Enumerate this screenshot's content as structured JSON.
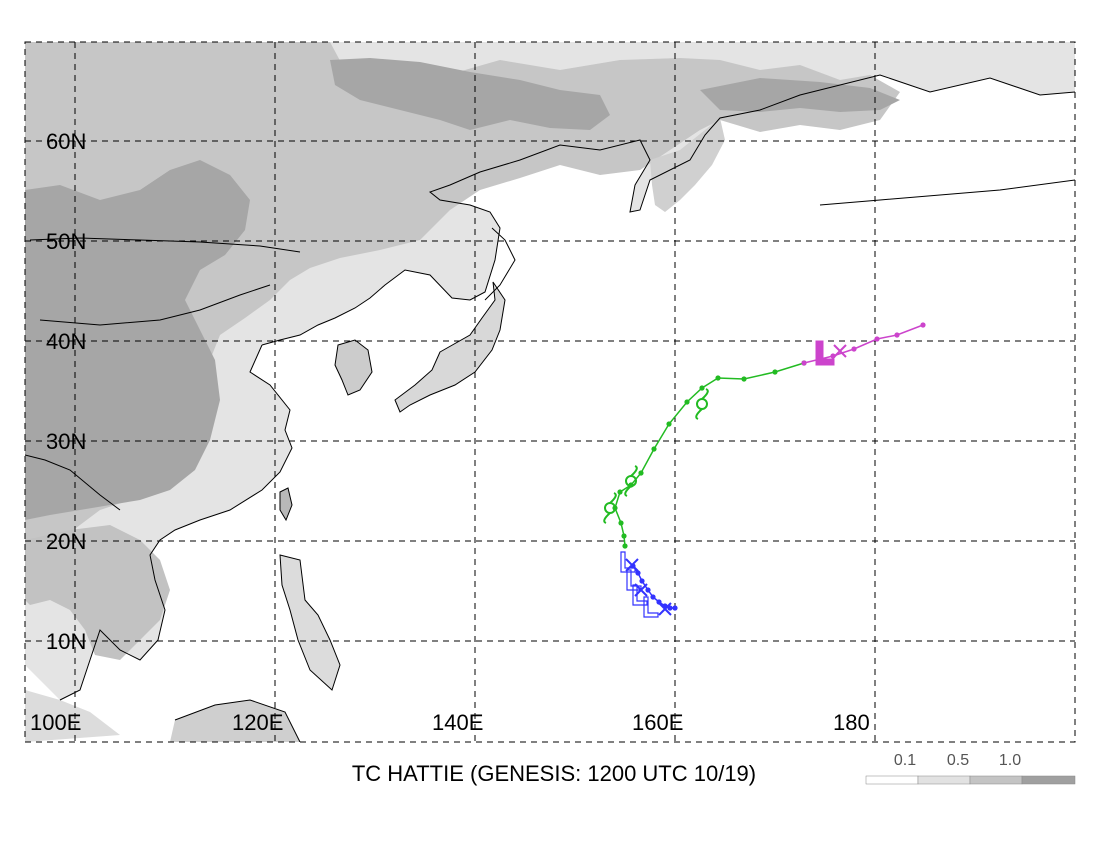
{
  "title": "TC HATTIE (GENESIS: 1200 UTC 10/19)",
  "latitude_labels": [
    "60N",
    "50N",
    "40N",
    "30N",
    "20N",
    "10N"
  ],
  "longitude_labels": [
    "100E",
    "120E",
    "140E",
    "160E",
    "180"
  ],
  "legend": {
    "labels": [
      "0.1",
      "0.5",
      "1.0"
    ],
    "colors": [
      "#ffffff",
      "#e2e2e2",
      "#c4c4c4",
      "#a0a0a0"
    ]
  },
  "colors": {
    "land_light": "#e6e6e6",
    "land_mid": "#c8c8c8",
    "land_dark": "#a8a8a8",
    "track_blue": "#3333ff",
    "track_green": "#22bb22",
    "track_magenta": "#cc44cc",
    "coast": "#000000",
    "grid": "#000000"
  },
  "tracks": [
    {
      "stage": "tropical depression",
      "color": "#3333ff",
      "points": [
        [
          160.0,
          13.3
        ],
        [
          159.5,
          13.3
        ],
        [
          159.0,
          13.5
        ],
        [
          158.4,
          13.9
        ],
        [
          157.8,
          14.4
        ],
        [
          157.3,
          15.1
        ],
        [
          156.7,
          16.0
        ],
        [
          156.3,
          16.8
        ],
        [
          155.8,
          17.5
        ]
      ]
    },
    {
      "stage": "tropical storm",
      "color": "#22bb22",
      "points": [
        [
          155.0,
          19.5
        ],
        [
          154.9,
          20.5
        ],
        [
          154.6,
          21.8
        ],
        [
          154.0,
          23.3
        ],
        [
          154.5,
          24.9
        ],
        [
          155.6,
          25.6
        ],
        [
          156.6,
          26.8
        ],
        [
          157.9,
          29.2
        ],
        [
          159.4,
          31.7
        ],
        [
          161.2,
          33.9
        ],
        [
          162.7,
          35.3
        ],
        [
          164.3,
          36.3
        ],
        [
          166.9,
          36.2
        ],
        [
          170.0,
          36.9
        ],
        [
          172.9,
          37.8
        ]
      ]
    },
    {
      "stage": "extratropical",
      "color": "#cc44cc",
      "points": [
        [
          172.9,
          37.8
        ],
        [
          175.8,
          38.5
        ],
        [
          177.9,
          39.2
        ],
        [
          180.2,
          40.2
        ],
        [
          182.2,
          40.6
        ],
        [
          184.8,
          41.6
        ]
      ]
    }
  ],
  "symbols": [
    {
      "type": "depression-L",
      "color": "#3333ff",
      "lon": 155.2,
      "lat": 17.5
    },
    {
      "type": "depression-L",
      "color": "#3333ff",
      "lon": 155.8,
      "lat": 15.7
    },
    {
      "type": "depression-L",
      "color": "#3333ff",
      "lon": 156.4,
      "lat": 14.2
    },
    {
      "type": "depression-L",
      "color": "#3333ff",
      "lon": 157.5,
      "lat": 13.0
    },
    {
      "type": "cross",
      "color": "#3333ff",
      "lon": 155.7,
      "lat": 17.6
    },
    {
      "type": "cross",
      "color": "#3333ff",
      "lon": 156.6,
      "lat": 15.1
    },
    {
      "type": "cross",
      "color": "#3333ff",
      "lon": 159.0,
      "lat": 13.2
    },
    {
      "type": "storm-symbol",
      "color": "#22bb22",
      "lon": 153.5,
      "lat": 23.3
    },
    {
      "type": "storm-symbol",
      "color": "#22bb22",
      "lon": 155.6,
      "lat": 26.0
    },
    {
      "type": "storm-symbol",
      "color": "#22bb22",
      "lon": 162.7,
      "lat": 33.7
    },
    {
      "type": "extratropical-L",
      "color": "#cc44cc",
      "lon": 174.9,
      "lat": 38.4
    },
    {
      "type": "cross",
      "color": "#cc44cc",
      "lon": 176.5,
      "lat": 39.0
    }
  ]
}
